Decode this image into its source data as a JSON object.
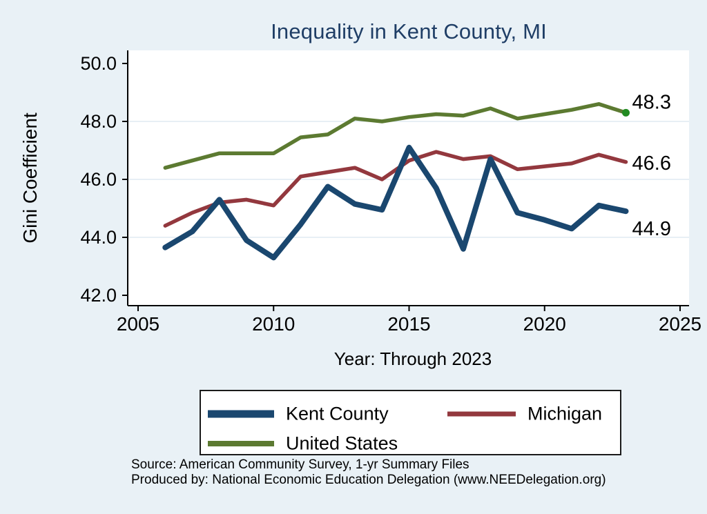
{
  "title": "Inequality in Kent County, MI",
  "axes": {
    "y_label": "Gini Coefficient",
    "x_label": "Year: Through 2023"
  },
  "chart_data": {
    "type": "line",
    "title": "Inequality in Kent County, MI",
    "xlabel": "Year: Through 2023",
    "ylabel": "Gini Coefficient",
    "xlim": [
      2005,
      2025
    ],
    "ylim": [
      42.0,
      50.0
    ],
    "grid": "horizontal",
    "gridline_values": [
      44.0,
      46.0,
      48.0
    ],
    "x_ticks": [
      {
        "v": 2005,
        "label": "2005"
      },
      {
        "v": 2010,
        "label": "2010"
      },
      {
        "v": 2015,
        "label": "2015"
      },
      {
        "v": 2020,
        "label": "2020"
      },
      {
        "v": 2025,
        "label": "2025"
      }
    ],
    "y_ticks": [
      {
        "v": 42.0,
        "label": "42.0"
      },
      {
        "v": 44.0,
        "label": "44.0"
      },
      {
        "v": 46.0,
        "label": "46.0"
      },
      {
        "v": 48.0,
        "label": "48.0"
      },
      {
        "v": 50.0,
        "label": "50.0"
      }
    ],
    "x": [
      2006,
      2007,
      2008,
      2009,
      2010,
      2011,
      2012,
      2013,
      2014,
      2015,
      2016,
      2017,
      2018,
      2019,
      2020,
      2021,
      2022,
      2023
    ],
    "series": [
      {
        "name": "Kent County",
        "color": "#1a476f",
        "values": [
          43.65,
          44.2,
          45.3,
          43.9,
          43.3,
          44.45,
          45.75,
          45.15,
          44.95,
          47.1,
          45.7,
          43.6,
          46.7,
          44.85,
          44.6,
          44.3,
          45.1,
          44.9
        ],
        "end_label": "44.9",
        "end_marker": false
      },
      {
        "name": "Michigan",
        "color": "#93383e",
        "values": [
          44.4,
          44.85,
          45.2,
          45.3,
          45.1,
          46.1,
          46.25,
          46.4,
          46.0,
          46.65,
          46.95,
          46.7,
          46.8,
          46.35,
          46.45,
          46.55,
          46.85,
          46.6
        ],
        "end_label": "46.6",
        "end_marker": false
      },
      {
        "name": "United States",
        "color": "#5c7a31",
        "values": [
          46.4,
          46.65,
          46.9,
          46.9,
          46.9,
          47.45,
          47.55,
          48.1,
          48.0,
          48.15,
          48.25,
          48.2,
          48.45,
          48.1,
          48.25,
          48.4,
          48.6,
          48.3
        ],
        "end_label": "48.3",
        "end_marker": true
      }
    ],
    "legend_position": "bottom"
  },
  "legend": {
    "items": [
      {
        "label": "Kent County",
        "color": "#1a476f"
      },
      {
        "label": "Michigan",
        "color": "#93383e"
      },
      {
        "label": "United States",
        "color": "#5c7a31"
      }
    ]
  },
  "footer": {
    "source_line": "Source: American Community Survey, 1-yr Summary Files",
    "produced_line": "Produced by: National Economic Education Delegation (www.NEEDelegation.org)"
  },
  "colors": {
    "background": "#e9f1f6",
    "plot_background": "#ffffff",
    "gridline": "#dfeaf2",
    "axis": "#000000",
    "title_text": "#1f3e66",
    "end_dot": "#228b22"
  }
}
